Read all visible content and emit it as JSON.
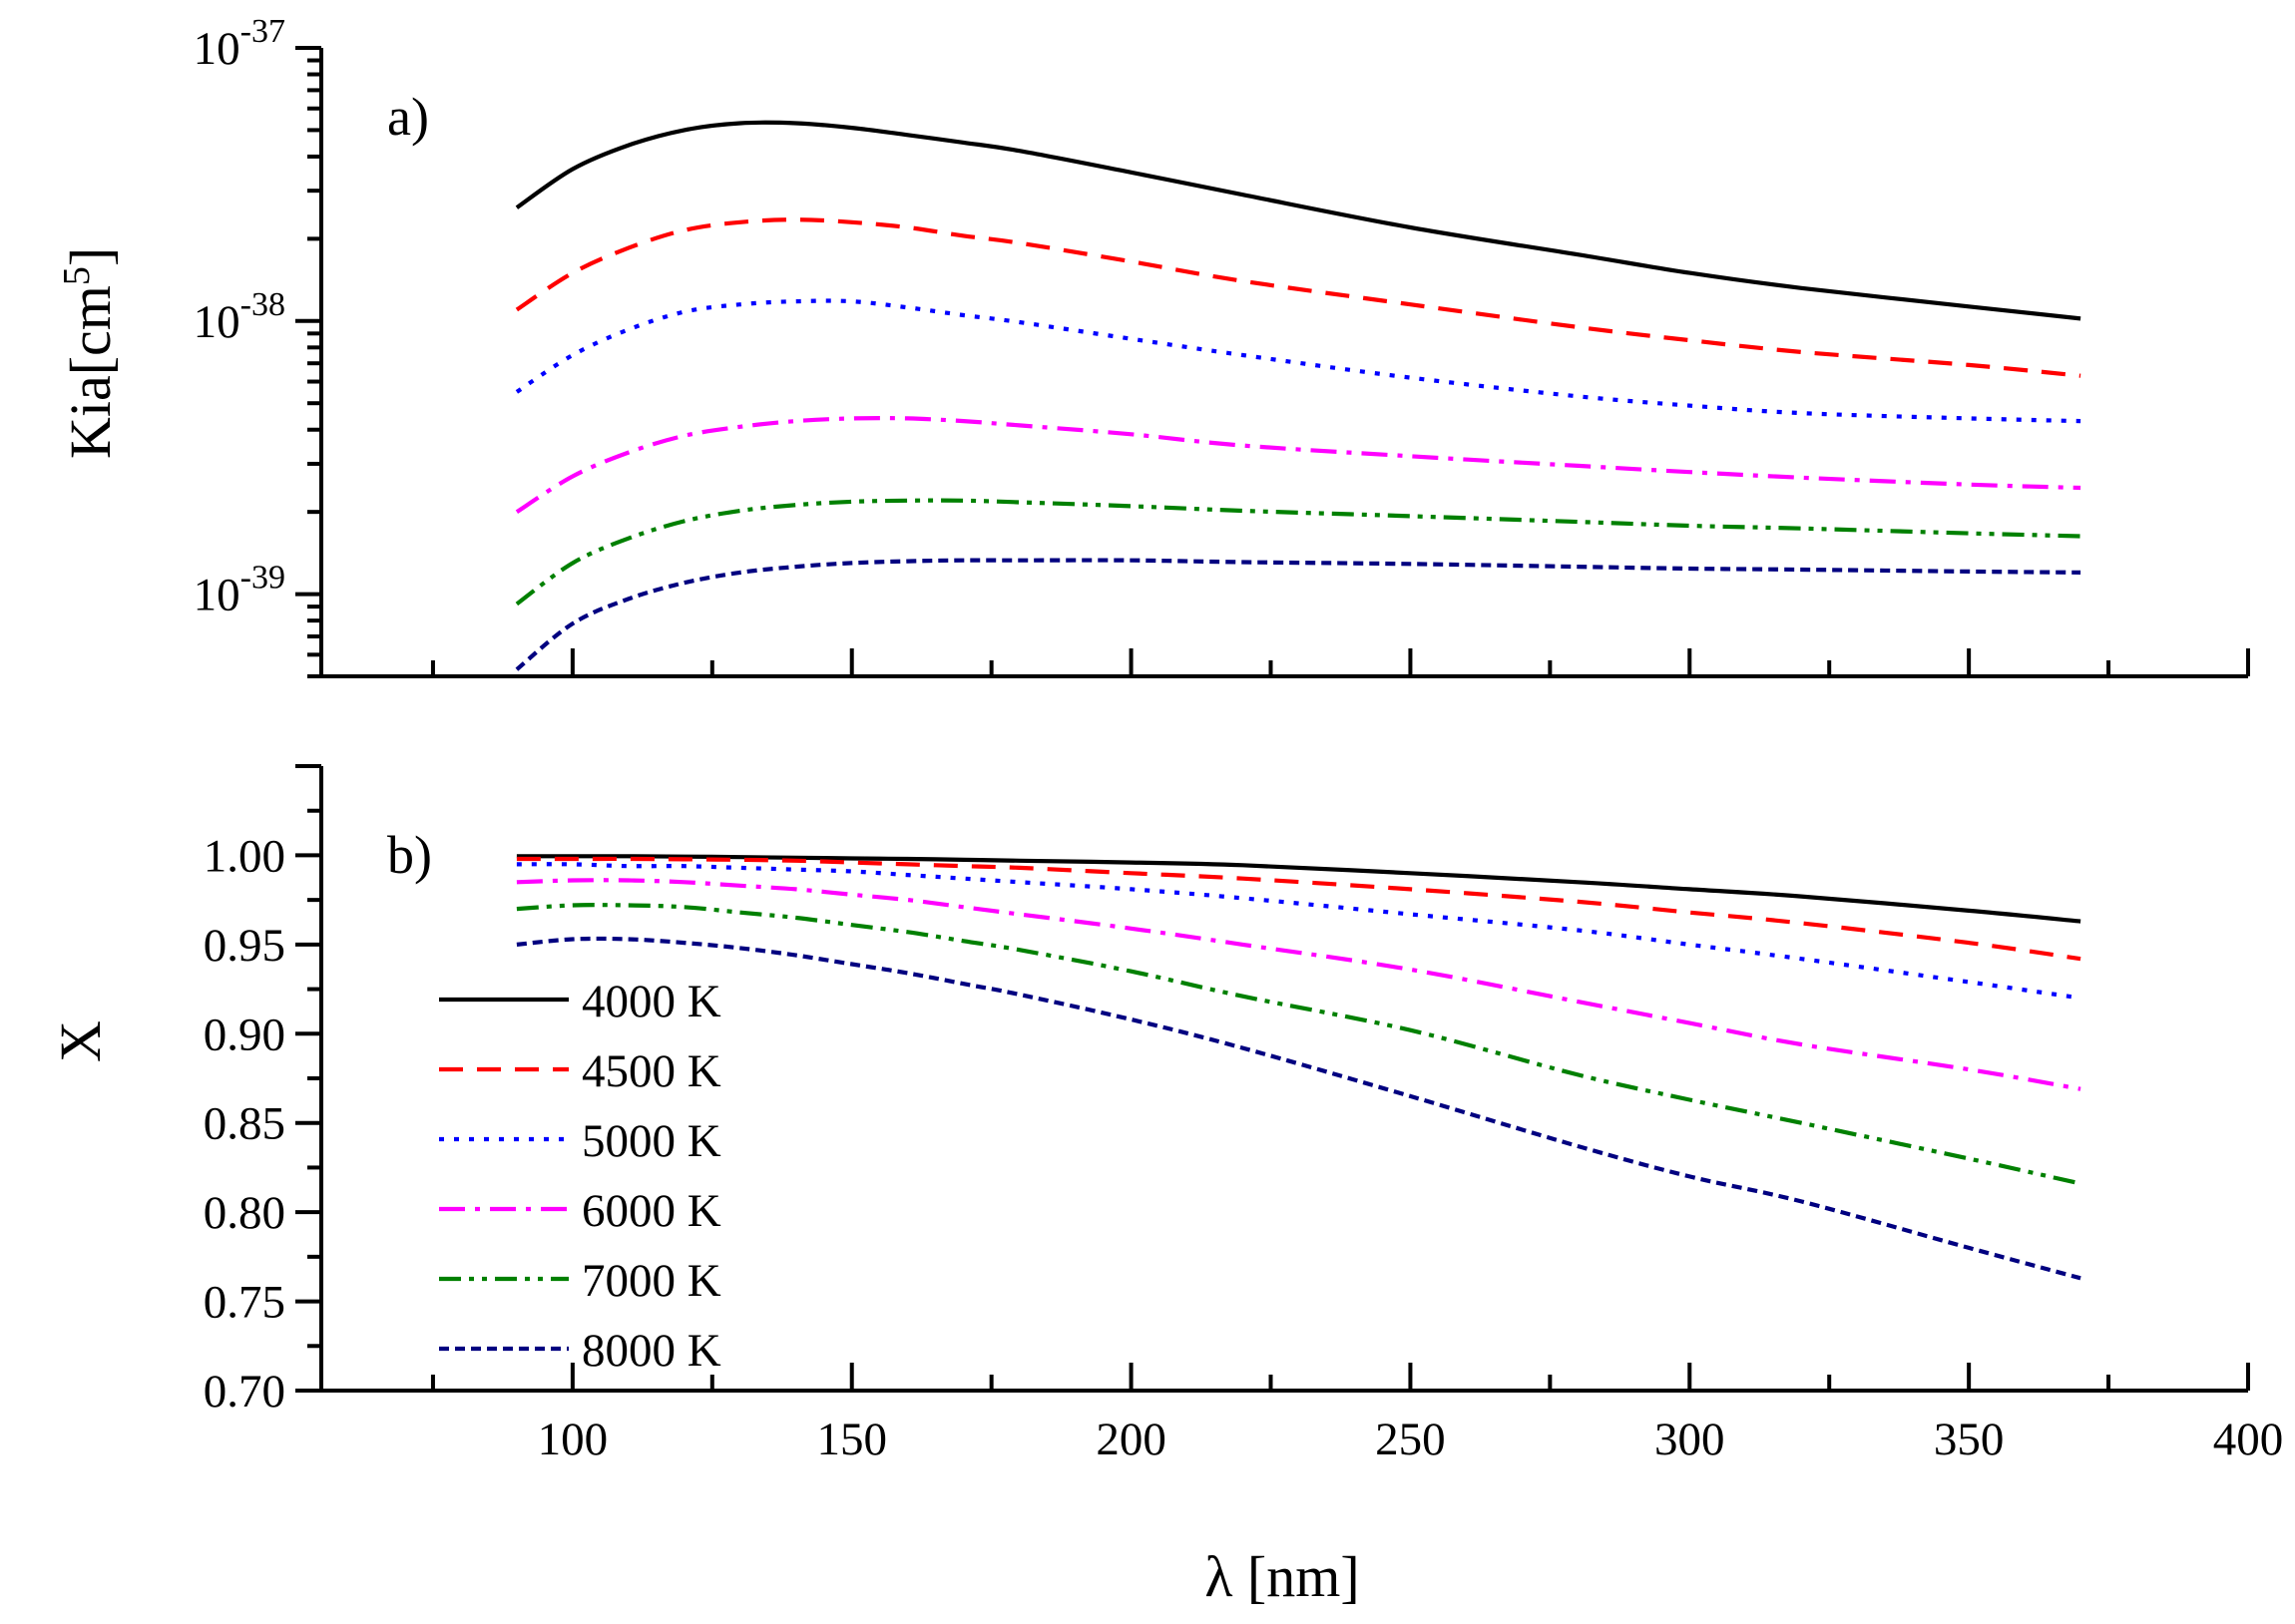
{
  "chart_data": [
    {
      "panel": "a)",
      "type": "line",
      "yscale": "log",
      "ylabel": "Kia[cm",
      "ylabel_sup": "5",
      "ylabel_close": "]",
      "xlim": [
        55,
        400
      ],
      "ylim": [
        5e-40,
        1e-37
      ],
      "y_major_ticks": [
        {
          "value": 1e-37,
          "base": "10",
          "exp": "-37"
        },
        {
          "value": 1e-38,
          "base": "10",
          "exp": "-38"
        },
        {
          "value": 1e-39,
          "base": "10",
          "exp": "-39"
        }
      ],
      "x": [
        90,
        100,
        110,
        120,
        130,
        140,
        150,
        160,
        170,
        180,
        200,
        220,
        250,
        280,
        300,
        320,
        350,
        370
      ],
      "series": [
        {
          "name": "4000 K",
          "color": "#000000",
          "dash": "solid",
          "values": [
            2.6e-38,
            3.6e-38,
            4.4e-38,
            5e-38,
            5.3e-38,
            5.3e-38,
            5.1e-38,
            4.8e-38,
            4.5e-38,
            4.2e-38,
            3.5e-38,
            2.9e-38,
            2.2e-38,
            1.75e-38,
            1.5e-38,
            1.32e-38,
            1.13e-38,
            1.02e-38
          ]
        },
        {
          "name": "4500 K",
          "color": "#ff0000",
          "dash": "dash",
          "values": [
            1.1e-38,
            1.5e-38,
            1.85e-38,
            2.15e-38,
            2.3e-38,
            2.35e-38,
            2.3e-38,
            2.2e-38,
            2.05e-38,
            1.93e-38,
            1.65e-38,
            1.4e-38,
            1.15e-38,
            9.5e-39,
            8.5e-39,
            7.7e-39,
            6.9e-39,
            6.3e-39
          ]
        },
        {
          "name": "5000 K",
          "color": "#0000ff",
          "dash": "dot",
          "values": [
            5.5e-39,
            7.5e-39,
            9.3e-39,
            1.08e-38,
            1.15e-38,
            1.18e-38,
            1.18e-38,
            1.12e-38,
            1.05e-38,
            9.9e-39,
            8.6e-39,
            7.5e-39,
            6.2e-39,
            5.3e-39,
            4.9e-39,
            4.6e-39,
            4.4e-39,
            4.3e-39
          ]
        },
        {
          "name": "6000 K",
          "color": "#ff00ff",
          "dash": "dashdot",
          "values": [
            2e-39,
            2.7e-39,
            3.3e-39,
            3.8e-39,
            4.1e-39,
            4.3e-39,
            4.4e-39,
            4.4e-39,
            4.3e-39,
            4.15e-39,
            3.85e-39,
            3.5e-39,
            3.2e-39,
            2.95e-39,
            2.8e-39,
            2.67e-39,
            2.52e-39,
            2.45e-39
          ]
        },
        {
          "name": "7000 K",
          "color": "#008000",
          "dash": "dashdotdot",
          "values": [
            9.2e-40,
            1.3e-39,
            1.6e-39,
            1.85e-39,
            2.02e-39,
            2.12e-39,
            2.18e-39,
            2.2e-39,
            2.2e-39,
            2.17e-39,
            2.1e-39,
            2.02e-39,
            1.93e-39,
            1.84e-39,
            1.78e-39,
            1.74e-39,
            1.67e-39,
            1.63e-39
          ]
        },
        {
          "name": "8000 K",
          "color": "#000080",
          "dash": "shortdash",
          "values": [
            5.3e-40,
            7.8e-40,
            9.6e-40,
            1.1e-39,
            1.2e-39,
            1.26e-39,
            1.3e-39,
            1.32e-39,
            1.33e-39,
            1.33e-39,
            1.33e-39,
            1.31e-39,
            1.29e-39,
            1.26e-39,
            1.24e-39,
            1.23e-39,
            1.21e-39,
            1.2e-39
          ]
        }
      ]
    },
    {
      "panel": "b)",
      "type": "line",
      "yscale": "linear",
      "ylabel": "X",
      "xlabel": "λ [nm]",
      "xlim": [
        55,
        400
      ],
      "ylim": [
        0.7,
        1.05
      ],
      "x_ticks": [
        100,
        150,
        200,
        250,
        300,
        350,
        400
      ],
      "x_tick_labels": [
        "100",
        "150",
        "200",
        "250",
        "300",
        "350",
        "400"
      ],
      "y_ticks": [
        0.7,
        0.75,
        0.8,
        0.85,
        0.9,
        0.95,
        1.0
      ],
      "y_tick_labels": [
        "0.70",
        "0.75",
        "0.80",
        "0.85",
        "0.90",
        "0.95",
        "1.00"
      ],
      "x": [
        90,
        100,
        110,
        120,
        130,
        140,
        150,
        160,
        170,
        180,
        200,
        220,
        250,
        280,
        300,
        320,
        350,
        370
      ],
      "series": [
        {
          "name": "4000 K",
          "color": "#000000",
          "dash": "solid",
          "values": [
            0.9995,
            0.9995,
            0.9995,
            0.9993,
            0.999,
            0.9987,
            0.9983,
            0.998,
            0.9975,
            0.997,
            0.996,
            0.9945,
            0.99,
            0.985,
            0.981,
            0.977,
            0.969,
            0.963
          ]
        },
        {
          "name": "4500 K",
          "color": "#ff0000",
          "dash": "dash",
          "values": [
            0.998,
            0.998,
            0.998,
            0.9978,
            0.9975,
            0.997,
            0.996,
            0.995,
            0.994,
            0.993,
            0.99,
            0.987,
            0.981,
            0.974,
            0.968,
            0.962,
            0.951,
            0.942
          ]
        },
        {
          "name": "5000 K",
          "color": "#0000ff",
          "dash": "dot",
          "values": [
            0.995,
            0.995,
            0.994,
            0.994,
            0.993,
            0.992,
            0.991,
            0.989,
            0.987,
            0.985,
            0.981,
            0.976,
            0.967,
            0.958,
            0.95,
            0.942,
            0.929,
            0.92
          ]
        },
        {
          "name": "6000 K",
          "color": "#ff00ff",
          "dash": "dashdot",
          "values": [
            0.985,
            0.986,
            0.986,
            0.985,
            0.983,
            0.981,
            0.978,
            0.975,
            0.971,
            0.967,
            0.959,
            0.95,
            0.936,
            0.918,
            0.906,
            0.894,
            0.88,
            0.869
          ]
        },
        {
          "name": "7000 K",
          "color": "#008000",
          "dash": "dashdotdot",
          "values": [
            0.97,
            0.972,
            0.972,
            0.971,
            0.968,
            0.965,
            0.961,
            0.957,
            0.952,
            0.947,
            0.935,
            0.921,
            0.902,
            0.877,
            0.863,
            0.85,
            0.83,
            0.816
          ]
        },
        {
          "name": "8000 K",
          "color": "#000080",
          "dash": "shortdash",
          "values": [
            0.95,
            0.953,
            0.953,
            0.951,
            0.948,
            0.944,
            0.939,
            0.934,
            0.928,
            0.922,
            0.908,
            0.892,
            0.865,
            0.837,
            0.82,
            0.806,
            0.78,
            0.763
          ]
        }
      ]
    }
  ],
  "legend": {
    "placement": "lower-left of panel b",
    "items": [
      "4000 K",
      "4500 K",
      "5000 K",
      "6000 K",
      "7000 K",
      "8000 K"
    ]
  }
}
